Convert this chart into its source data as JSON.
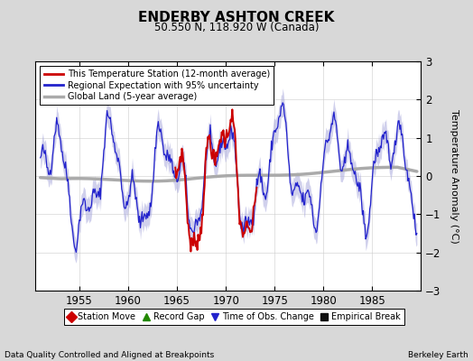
{
  "title": "ENDERBY ASHTON CREEK",
  "subtitle": "50.550 N, 118.920 W (Canada)",
  "ylabel": "Temperature Anomaly (°C)",
  "xlabel_bottom_left": "Data Quality Controlled and Aligned at Breakpoints",
  "xlabel_bottom_right": "Berkeley Earth",
  "ylim": [
    -3,
    3
  ],
  "xlim_start": 1950.5,
  "xlim_end": 1990.0,
  "xticks": [
    1955,
    1960,
    1965,
    1970,
    1975,
    1980,
    1985
  ],
  "yticks": [
    -3,
    -2,
    -1,
    0,
    1,
    2,
    3
  ],
  "bg_color": "#d8d8d8",
  "plot_bg_color": "#ffffff",
  "regional_color": "#2222cc",
  "regional_fill_color": "#aaaadd",
  "station_color": "#cc0000",
  "global_color": "#aaaaaa",
  "bottom_legend_items": [
    {
      "label": "Station Move",
      "color": "#cc0000",
      "marker": "D"
    },
    {
      "label": "Record Gap",
      "color": "#228800",
      "marker": "^"
    },
    {
      "label": "Time of Obs. Change",
      "color": "#2222cc",
      "marker": "v"
    },
    {
      "label": "Empirical Break",
      "color": "#111111",
      "marker": "s"
    }
  ]
}
